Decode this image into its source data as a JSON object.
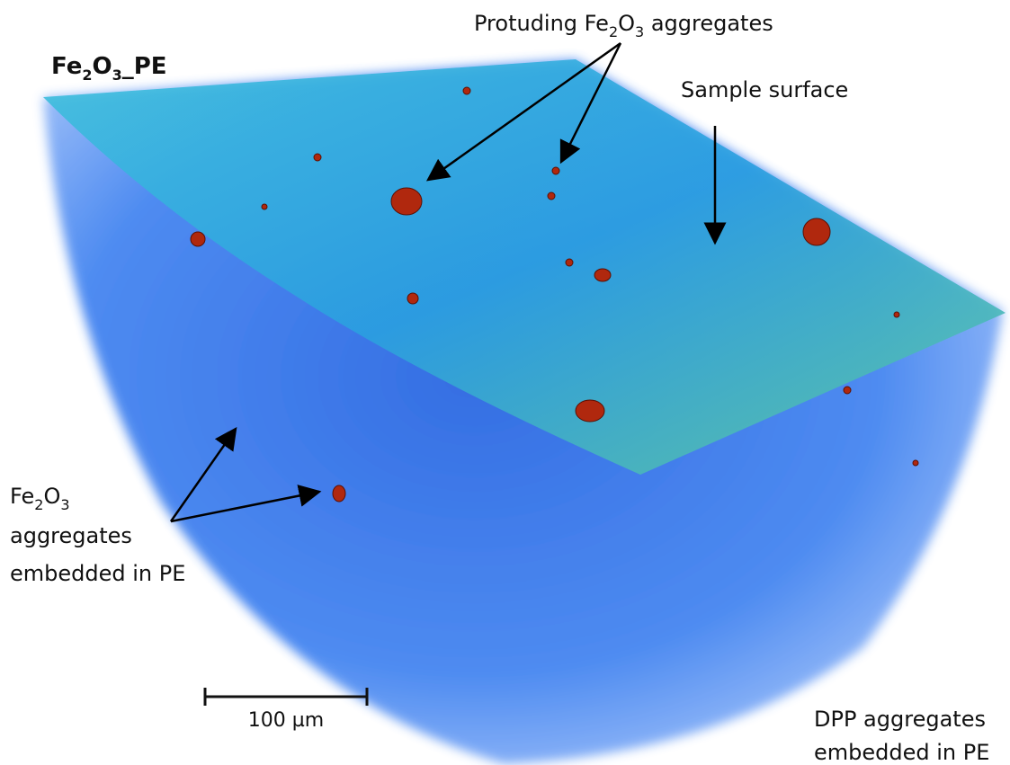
{
  "title": {
    "parts": [
      "Fe",
      "2",
      "O",
      "3",
      "_PE"
    ]
  },
  "annotations": {
    "protruding": {
      "parts": [
        "Protuding Fe",
        "2",
        "O",
        "3",
        " aggregates"
      ]
    },
    "sample_surface": "Sample surface",
    "embedded": {
      "line1": {
        "parts": [
          "Fe",
          "2",
          "O",
          "3"
        ]
      },
      "line2": "aggregates",
      "line3": "embedded in PE"
    },
    "dpp": {
      "line1": "DPP aggregates",
      "line2": "embedded in PE"
    }
  },
  "scale_bar": {
    "label": "100 µm"
  }
}
